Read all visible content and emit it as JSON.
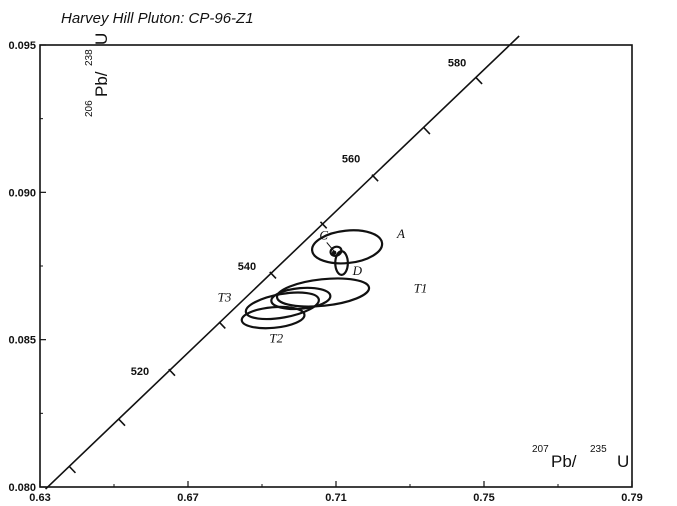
{
  "chart_data": {
    "type": "scatter",
    "title": "Harvey Hill Pluton:  CP-96-Z1",
    "xlabel": {
      "sup1": "207",
      "main1": "Pb/ ",
      "sup2": "235",
      "main2": "U"
    },
    "ylabel": {
      "sup1": "206",
      "main1": "Pb/ ",
      "sup2": "238",
      "main2": "U"
    },
    "xlim": [
      0.63,
      0.79
    ],
    "ylim": [
      0.08,
      0.095
    ],
    "x_ticks": [
      "0.63",
      "0.67",
      "0.71",
      "0.75",
      "0.79"
    ],
    "y_ticks": [
      "0.080",
      "0.085",
      "0.090",
      "0.095"
    ],
    "concordia": {
      "ticks": [
        {
          "age": 500,
          "x": 0.6379,
          "y": 0.0807
        },
        {
          "age": 510,
          "x": 0.6513,
          "y": 0.0823
        },
        {
          "age": 520,
          "x": 0.6648,
          "y": 0.084
        },
        {
          "age": 530,
          "x": 0.6784,
          "y": 0.0856
        },
        {
          "age": 540,
          "x": 0.6921,
          "y": 0.0873
        },
        {
          "age": 550,
          "x": 0.7058,
          "y": 0.089
        },
        {
          "age": 560,
          "x": 0.7197,
          "y": 0.0906
        },
        {
          "age": 570,
          "x": 0.7337,
          "y": 0.0922
        },
        {
          "age": 580,
          "x": 0.7478,
          "y": 0.0939
        }
      ],
      "labeled_ages": [
        "520",
        "540",
        "560",
        "580"
      ],
      "x_range": [
        0.6315,
        0.7595
      ]
    },
    "ellipses": [
      {
        "name": "A",
        "cx": 0.713,
        "cy": 0.08815,
        "rx": 0.0095,
        "ry": 0.00055,
        "angle": 6
      },
      {
        "name": "C",
        "cx": 0.71,
        "cy": 0.088,
        "rx": 0.0015,
        "ry": 0.00015,
        "angle": 20
      },
      {
        "name": "D",
        "cx": 0.7115,
        "cy": 0.0876,
        "rx": 0.0017,
        "ry": 0.0004,
        "angle": 0
      },
      {
        "name": "T1",
        "cx": 0.7065,
        "cy": 0.0866,
        "rx": 0.0125,
        "ry": 0.00045,
        "angle": 6
      },
      {
        "name": "T3",
        "cx": 0.6955,
        "cy": 0.08615,
        "rx": 0.01,
        "ry": 0.0004,
        "angle": 10
      },
      {
        "name": "",
        "cx": 0.7005,
        "cy": 0.0864,
        "rx": 0.008,
        "ry": 0.00035,
        "angle": 5
      },
      {
        "name": "T2",
        "cx": 0.693,
        "cy": 0.08575,
        "rx": 0.0085,
        "ry": 0.00035,
        "angle": 5
      }
    ],
    "ellipse_labels": [
      {
        "text": "A",
        "x": 0.7265,
        "y": 0.08845
      },
      {
        "text": "C",
        "x": 0.7055,
        "y": 0.0884
      },
      {
        "text": "D",
        "x": 0.7145,
        "y": 0.0872
      },
      {
        "text": "T1",
        "x": 0.731,
        "y": 0.0866
      },
      {
        "text": "T3",
        "x": 0.678,
        "y": 0.0863
      },
      {
        "text": "T2",
        "x": 0.692,
        "y": 0.0849
      }
    ],
    "grid": false,
    "legend": "none"
  }
}
